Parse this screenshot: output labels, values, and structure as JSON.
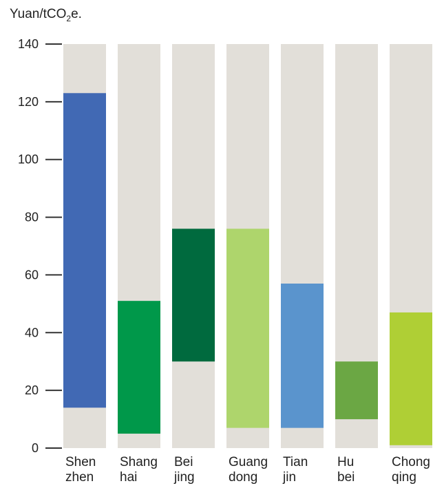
{
  "chart_data": {
    "type": "bar",
    "subtype": "floating-range",
    "unit_label": {
      "main": "Yuan/tCO",
      "sub": "2",
      "tail": "e."
    },
    "categories": [
      [
        "Shen",
        "zhen"
      ],
      [
        "Shang",
        "hai"
      ],
      [
        "Bei",
        "jing"
      ],
      [
        "Guang",
        "dong"
      ],
      [
        "Tian",
        "jin"
      ],
      [
        "Hu",
        "bei"
      ],
      [
        "Chong",
        "qing"
      ]
    ],
    "ranges": [
      {
        "low": 14,
        "high": 123
      },
      {
        "low": 5,
        "high": 51
      },
      {
        "low": 30,
        "high": 76
      },
      {
        "low": 7,
        "high": 76
      },
      {
        "low": 7,
        "high": 57
      },
      {
        "low": 10,
        "high": 30
      },
      {
        "low": 1,
        "high": 47
      }
    ],
    "colors": [
      "#4169b4",
      "#00984a",
      "#006a3e",
      "#aed56c",
      "#5a94cd",
      "#6ba744",
      "#afcf35"
    ],
    "background_color": "#e2dfd9",
    "ylim": [
      0,
      140
    ],
    "yticks": [
      0,
      20,
      40,
      60,
      80,
      100,
      120,
      140
    ],
    "grid": false,
    "legend": "none"
  }
}
